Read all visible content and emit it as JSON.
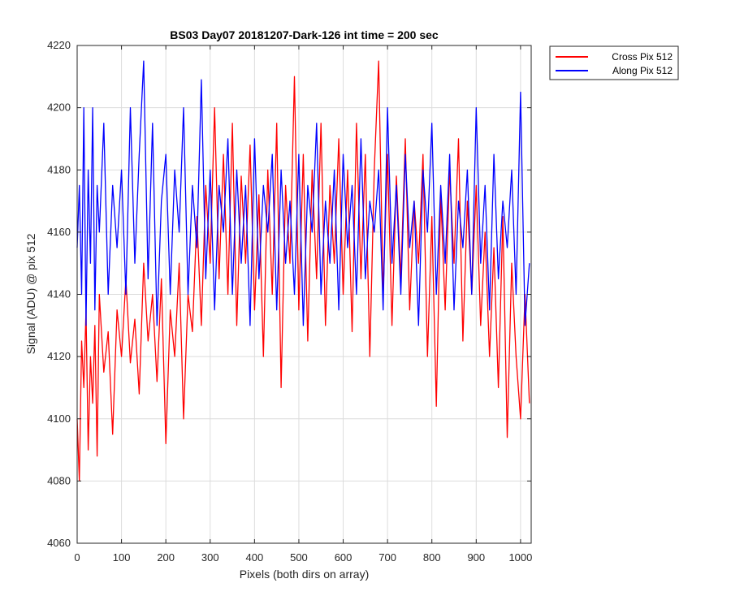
{
  "chart_data": {
    "type": "line",
    "title": "BS03 Day07 20181207-Dark-126 int time = 200 sec",
    "xlabel": "Pixels (both dirs on array)",
    "ylabel": "Signal (ADU) @ pix 512",
    "xlim": [
      0,
      1024
    ],
    "ylim": [
      4060,
      4220
    ],
    "xticks": [
      0,
      100,
      200,
      300,
      400,
      500,
      600,
      700,
      800,
      900,
      1000
    ],
    "yticks": [
      4060,
      4080,
      4100,
      4120,
      4140,
      4160,
      4180,
      4200,
      4220
    ],
    "grid": true,
    "legend_position": "outside-top-right",
    "series": [
      {
        "name": "Cross Pix 512",
        "color": "#ff0000",
        "x": [
          0,
          5,
          10,
          15,
          20,
          25,
          30,
          35,
          40,
          45,
          50,
          60,
          70,
          80,
          90,
          100,
          110,
          120,
          130,
          140,
          150,
          160,
          170,
          180,
          190,
          200,
          210,
          220,
          230,
          240,
          250,
          260,
          270,
          280,
          290,
          300,
          310,
          320,
          330,
          340,
          350,
          360,
          370,
          380,
          390,
          400,
          410,
          420,
          430,
          440,
          450,
          460,
          470,
          480,
          490,
          500,
          510,
          520,
          530,
          540,
          550,
          560,
          570,
          580,
          590,
          600,
          610,
          620,
          630,
          640,
          650,
          660,
          670,
          680,
          690,
          700,
          710,
          720,
          730,
          740,
          750,
          760,
          770,
          780,
          790,
          800,
          810,
          820,
          830,
          840,
          850,
          860,
          870,
          880,
          890,
          900,
          910,
          920,
          930,
          940,
          950,
          960,
          970,
          980,
          990,
          1000,
          1010,
          1020
        ],
        "y": [
          4100,
          4080,
          4125,
          4110,
          4135,
          4090,
          4120,
          4105,
          4130,
          4088,
          4140,
          4115,
          4128,
          4095,
          4135,
          4120,
          4145,
          4118,
          4132,
          4108,
          4150,
          4125,
          4140,
          4112,
          4145,
          4092,
          4135,
          4120,
          4150,
          4100,
          4140,
          4128,
          4165,
          4130,
          4175,
          4150,
          4200,
          4145,
          4185,
          4140,
          4195,
          4130,
          4178,
          4150,
          4188,
          4135,
          4172,
          4120,
          4180,
          4140,
          4195,
          4110,
          4175,
          4150,
          4210,
          4135,
          4185,
          4125,
          4180,
          4145,
          4195,
          4130,
          4175,
          4150,
          4190,
          4140,
          4180,
          4128,
          4195,
          4145,
          4185,
          4120,
          4180,
          4215,
          4140,
          4185,
          4130,
          4178,
          4145,
          4190,
          4135,
          4170,
          4150,
          4185,
          4120,
          4165,
          4104,
          4172,
          4135,
          4180,
          4150,
          4190,
          4125,
          4170,
          4140,
          4175,
          4130,
          4160,
          4120,
          4155,
          4110,
          4165,
          4094,
          4150,
          4120,
          4100,
          4140,
          4105
        ]
      },
      {
        "name": "Along Pix 512",
        "color": "#0000ff",
        "x": [
          0,
          5,
          10,
          15,
          20,
          25,
          30,
          35,
          40,
          45,
          50,
          60,
          70,
          80,
          90,
          100,
          110,
          120,
          130,
          140,
          150,
          160,
          170,
          180,
          190,
          200,
          210,
          220,
          230,
          240,
          250,
          260,
          270,
          280,
          290,
          300,
          310,
          320,
          330,
          340,
          350,
          360,
          370,
          380,
          390,
          400,
          410,
          420,
          430,
          440,
          450,
          460,
          470,
          480,
          490,
          500,
          510,
          520,
          530,
          540,
          550,
          560,
          570,
          580,
          590,
          600,
          610,
          620,
          630,
          640,
          650,
          660,
          670,
          680,
          690,
          700,
          710,
          720,
          730,
          740,
          750,
          760,
          770,
          780,
          790,
          800,
          810,
          820,
          830,
          840,
          850,
          860,
          870,
          880,
          890,
          900,
          910,
          920,
          930,
          940,
          950,
          960,
          970,
          980,
          990,
          1000,
          1010,
          1020
        ],
        "y": [
          4155,
          4175,
          4140,
          4200,
          4130,
          4180,
          4150,
          4200,
          4135,
          4175,
          4160,
          4195,
          4140,
          4175,
          4155,
          4180,
          4140,
          4200,
          4150,
          4185,
          4215,
          4145,
          4195,
          4130,
          4170,
          4185,
          4140,
          4180,
          4160,
          4200,
          4140,
          4175,
          4155,
          4209,
          4145,
          4180,
          4135,
          4175,
          4160,
          4190,
          4140,
          4180,
          4150,
          4175,
          4130,
          4190,
          4145,
          4175,
          4160,
          4185,
          4135,
          4180,
          4150,
          4170,
          4140,
          4185,
          4130,
          4175,
          4160,
          4195,
          4140,
          4170,
          4150,
          4180,
          4135,
          4185,
          4155,
          4175,
          4140,
          4190,
          4145,
          4170,
          4160,
          4180,
          4135,
          4200,
          4150,
          4175,
          4140,
          4185,
          4155,
          4170,
          4130,
          4180,
          4160,
          4195,
          4140,
          4175,
          4150,
          4185,
          4135,
          4170,
          4155,
          4180,
          4140,
          4200,
          4150,
          4175,
          4135,
          4185,
          4145,
          4170,
          4155,
          4180,
          4140,
          4205,
          4130,
          4150
        ]
      }
    ]
  }
}
